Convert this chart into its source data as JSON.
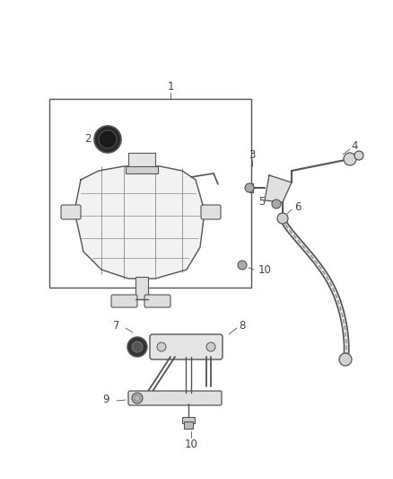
{
  "bg_color": "#ffffff",
  "line_color": "#555555",
  "label_color": "#444444",
  "fig_width": 4.38,
  "fig_height": 5.33,
  "dpi": 100
}
